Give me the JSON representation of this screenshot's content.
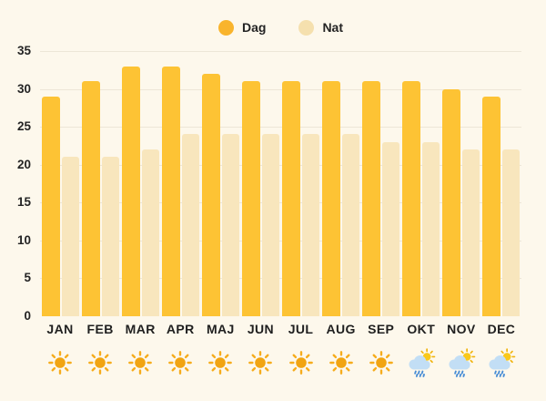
{
  "legend": {
    "items": [
      {
        "label": "Dag",
        "color": "#F9B42C"
      },
      {
        "label": "Nat",
        "color": "#F5E0AE"
      }
    ]
  },
  "chart_data": {
    "type": "bar",
    "title": "",
    "xlabel": "",
    "ylabel": "",
    "categories": [
      "JAN",
      "FEB",
      "MAR",
      "APR",
      "MAJ",
      "JUN",
      "JUL",
      "AUG",
      "SEP",
      "OKT",
      "NOV",
      "DEC"
    ],
    "series": [
      {
        "name": "Dag",
        "color": "#FDC334",
        "values": [
          29,
          31,
          33,
          33,
          32,
          31,
          31,
          31,
          31,
          31,
          30,
          29
        ]
      },
      {
        "name": "Nat",
        "color": "#F8E6BD",
        "values": [
          21,
          21,
          22,
          24,
          24,
          24,
          24,
          24,
          23,
          23,
          22,
          22
        ]
      }
    ],
    "ylim": [
      0,
      35
    ],
    "yticks": [
      0,
      5,
      10,
      15,
      20,
      25,
      30,
      35
    ],
    "grid": true,
    "legend_position": "top"
  },
  "month_icons": [
    "sun",
    "sun",
    "sun",
    "sun",
    "sun",
    "sun",
    "sun",
    "sun",
    "sun",
    "sun-rain",
    "sun-rain",
    "sun-rain"
  ],
  "colors": {
    "background": "#FDF8EC",
    "gridline": "#EDE6D7",
    "text": "#242424",
    "sun": "#F1A412",
    "sun_rays": "#F6AC1C",
    "cloud": "#C2DEF5",
    "rain": "#4A8ED5",
    "small_sun": "#F9C81A",
    "small_sun_rays": "#F0B30D"
  }
}
